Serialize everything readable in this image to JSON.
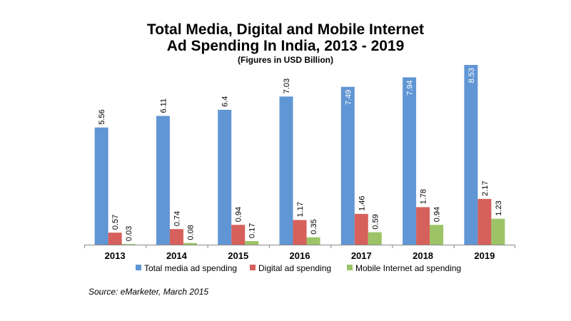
{
  "chart_data": {
    "type": "bar",
    "title_line1": "Total Media, Digital and Mobile Internet",
    "title_line2": "Ad Spending In India, 2013 - 2019",
    "subtitle": "(Figures in USD Billion)",
    "categories": [
      "2013",
      "2014",
      "2015",
      "2016",
      "2017",
      "2018",
      "2019"
    ],
    "series": [
      {
        "name": "Total media ad spending",
        "color": "#6196d4",
        "values": [
          5.56,
          6.11,
          6.4,
          7.03,
          7.49,
          7.94,
          8.53
        ],
        "labels": [
          "5.56",
          "6.11",
          "6.4",
          "7.03",
          "7.49",
          "7.94",
          "8.53"
        ]
      },
      {
        "name": "Digital ad spending",
        "color": "#d6605b",
        "values": [
          0.57,
          0.74,
          0.94,
          1.17,
          1.46,
          1.78,
          2.17
        ],
        "labels": [
          "0.57",
          "0.74",
          "0.94",
          "1.17",
          "1.46",
          "1.78",
          "2.17"
        ]
      },
      {
        "name": "Mobile Internet ad spending",
        "color": "#9cc467",
        "values": [
          0.03,
          0.08,
          0.17,
          0.35,
          0.59,
          0.94,
          1.23
        ],
        "labels": [
          "0.03",
          "0.08",
          "0.17",
          "0.35",
          "0.59",
          "0.94",
          "1.23"
        ]
      }
    ],
    "ylim": [
      0,
      8.53
    ],
    "grid": false,
    "legend_position": "bottom"
  },
  "source": "Source: eMarketer, March 2015"
}
